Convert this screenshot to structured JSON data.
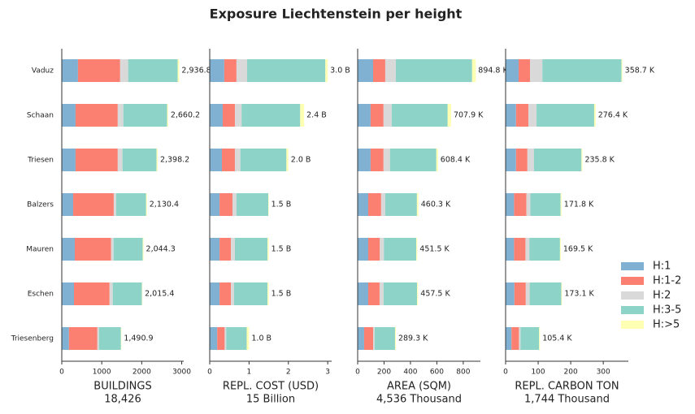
{
  "title": "Exposure Liechtenstein per height",
  "chart_data": [
    {
      "type": "stacked-barh",
      "xlabel": "BUILDINGS",
      "xlabel_total": "18,426",
      "categories": [
        "Vaduz",
        "Schaan",
        "Triesen",
        "Balzers",
        "Mauren",
        "Eschen",
        "Triesenberg"
      ],
      "series": [
        {
          "name": "H:1",
          "color": "#80b1d3",
          "values": [
            405,
            345,
            345,
            285,
            325,
            305,
            180
          ]
        },
        {
          "name": "H:1-2",
          "color": "#fb8072",
          "values": [
            1055,
            1055,
            1055,
            1015,
            910,
            890,
            710
          ]
        },
        {
          "name": "H:2",
          "color": "#d9d9d9",
          "values": [
            200,
            140,
            120,
            60,
            60,
            80,
            40
          ]
        },
        {
          "name": "H:3-5",
          "color": "#8dd3c7",
          "values": [
            1240,
            1095,
            850,
            750,
            730,
            730,
            550
          ]
        },
        {
          "name": "H:>5",
          "color": "#ffffb3",
          "values": [
            36.8,
            25.2,
            28.2,
            20.4,
            19.3,
            10.4,
            10.9
          ]
        }
      ],
      "totals": [
        {
          "value": 2936.8,
          "label": "2,936.8"
        },
        {
          "value": 2660.2,
          "label": "2,660.2"
        },
        {
          "value": 2398.2,
          "label": "2,398.2"
        },
        {
          "value": 2130.4,
          "label": "2,130.4"
        },
        {
          "value": 2044.3,
          "label": "2,044.3"
        },
        {
          "value": 2015.4,
          "label": "2,015.4"
        },
        {
          "value": 1490.9,
          "label": "1,490.9"
        }
      ],
      "xlim": [
        0,
        3050
      ],
      "xticks": [
        0,
        1000,
        2000,
        3000
      ]
    },
    {
      "type": "stacked-barh",
      "xlabel": "REPL. COST (USD)",
      "xlabel_total": "15 Billion",
      "categories": [
        "Vaduz",
        "Schaan",
        "Triesen",
        "Balzers",
        "Mauren",
        "Eschen",
        "Triesenberg"
      ],
      "series": [
        {
          "name": "H:1",
          "color": "#80b1d3",
          "values": [
            0.37,
            0.33,
            0.31,
            0.25,
            0.25,
            0.25,
            0.19
          ]
        },
        {
          "name": "H:1-2",
          "color": "#fb8072",
          "values": [
            0.31,
            0.31,
            0.33,
            0.33,
            0.29,
            0.29,
            0.19
          ]
        },
        {
          "name": "H:2",
          "color": "#d9d9d9",
          "values": [
            0.27,
            0.17,
            0.14,
            0.1,
            0.1,
            0.08,
            0.04
          ]
        },
        {
          "name": "H:3-5",
          "color": "#8dd3c7",
          "values": [
            1.99,
            1.49,
            1.17,
            0.81,
            0.83,
            0.85,
            0.52
          ]
        },
        {
          "name": "H:>5",
          "color": "#ffffb3",
          "values": [
            0.06,
            0.1,
            0.05,
            0.01,
            0.03,
            0.03,
            0.06
          ]
        }
      ],
      "totals": [
        {
          "value": 3.0,
          "label": "3.0 B"
        },
        {
          "value": 2.4,
          "label": "2.4 B"
        },
        {
          "value": 2.0,
          "label": "2.0 B"
        },
        {
          "value": 1.5,
          "label": "1.5 B"
        },
        {
          "value": 1.5,
          "label": "1.5 B"
        },
        {
          "value": 1.5,
          "label": "1.5 B"
        },
        {
          "value": 1.0,
          "label": "1.0 B"
        }
      ],
      "xlim": [
        0,
        3.1
      ],
      "xticks": [
        0,
        1,
        2,
        3
      ]
    },
    {
      "type": "stacked-barh",
      "xlabel": "AREA (SQM)",
      "xlabel_total": "4,536 Thousand",
      "categories": [
        "Vaduz",
        "Schaan",
        "Triesen",
        "Balzers",
        "Mauren",
        "Eschen",
        "Triesenberg"
      ],
      "series": [
        {
          "name": "H:1",
          "color": "#80b1d3",
          "values": [
            117,
            98,
            98,
            80,
            80,
            80,
            49
          ]
        },
        {
          "name": "H:1-2",
          "color": "#fb8072",
          "values": [
            92,
            98,
            98,
            98,
            88,
            86,
            68
          ]
        },
        {
          "name": "H:2",
          "color": "#d9d9d9",
          "values": [
            80,
            62,
            49,
            31,
            31,
            31,
            12
          ]
        },
        {
          "name": "H:3-5",
          "color": "#8dd3c7",
          "values": [
            578,
            424,
            351,
            240,
            245,
            253,
            154
          ]
        },
        {
          "name": "H:>5",
          "color": "#ffffb3",
          "values": [
            27.8,
            25.9,
            12.4,
            11.3,
            7.5,
            7.5,
            6.3
          ]
        }
      ],
      "totals": [
        {
          "value": 894.8,
          "label": "894.8 K"
        },
        {
          "value": 707.9,
          "label": "707.9 K"
        },
        {
          "value": 608.4,
          "label": "608.4 K"
        },
        {
          "value": 460.3,
          "label": "460.3 K"
        },
        {
          "value": 451.5,
          "label": "451.5 K"
        },
        {
          "value": 457.5,
          "label": "457.5 K"
        },
        {
          "value": 289.3,
          "label": "289.3 K"
        }
      ],
      "xlim": [
        0,
        930
      ],
      "xticks": [
        0,
        200,
        400,
        600,
        800
      ]
    },
    {
      "type": "stacked-barh",
      "xlabel": "REPL. CARBON TON",
      "xlabel_total": "1,744 Thousand",
      "categories": [
        "Vaduz",
        "Schaan",
        "Triesen",
        "Balzers",
        "Mauren",
        "Eschen",
        "Triesenberg"
      ],
      "series": [
        {
          "name": "H:1",
          "color": "#80b1d3",
          "values": [
            40,
            32,
            32,
            26,
            26,
            27,
            18
          ]
        },
        {
          "name": "H:1-2",
          "color": "#fb8072",
          "values": [
            35,
            38,
            35,
            38,
            35,
            35,
            23
          ]
        },
        {
          "name": "H:2",
          "color": "#d9d9d9",
          "values": [
            38,
            25,
            20,
            12,
            12,
            12,
            5
          ]
        },
        {
          "name": "H:3-5",
          "color": "#8dd3c7",
          "values": [
            243,
            177,
            146,
            93,
            94,
            97,
            57
          ]
        },
        {
          "name": "H:>5",
          "color": "#ffffb3",
          "values": [
            2.7,
            4.4,
            2.8,
            2.8,
            2.5,
            2.1,
            2.4
          ]
        }
      ],
      "totals": [
        {
          "value": 358.7,
          "label": "358.7 K"
        },
        {
          "value": 276.4,
          "label": "276.4 K"
        },
        {
          "value": 235.8,
          "label": "235.8 K"
        },
        {
          "value": 171.8,
          "label": "171.8 K"
        },
        {
          "value": 169.5,
          "label": "169.5 K"
        },
        {
          "value": 173.1,
          "label": "173.1 K"
        },
        {
          "value": 105.4,
          "label": "105.4 K"
        }
      ],
      "xlim": [
        0,
        377
      ],
      "xticks": [
        0,
        100,
        200,
        300
      ]
    }
  ]
}
